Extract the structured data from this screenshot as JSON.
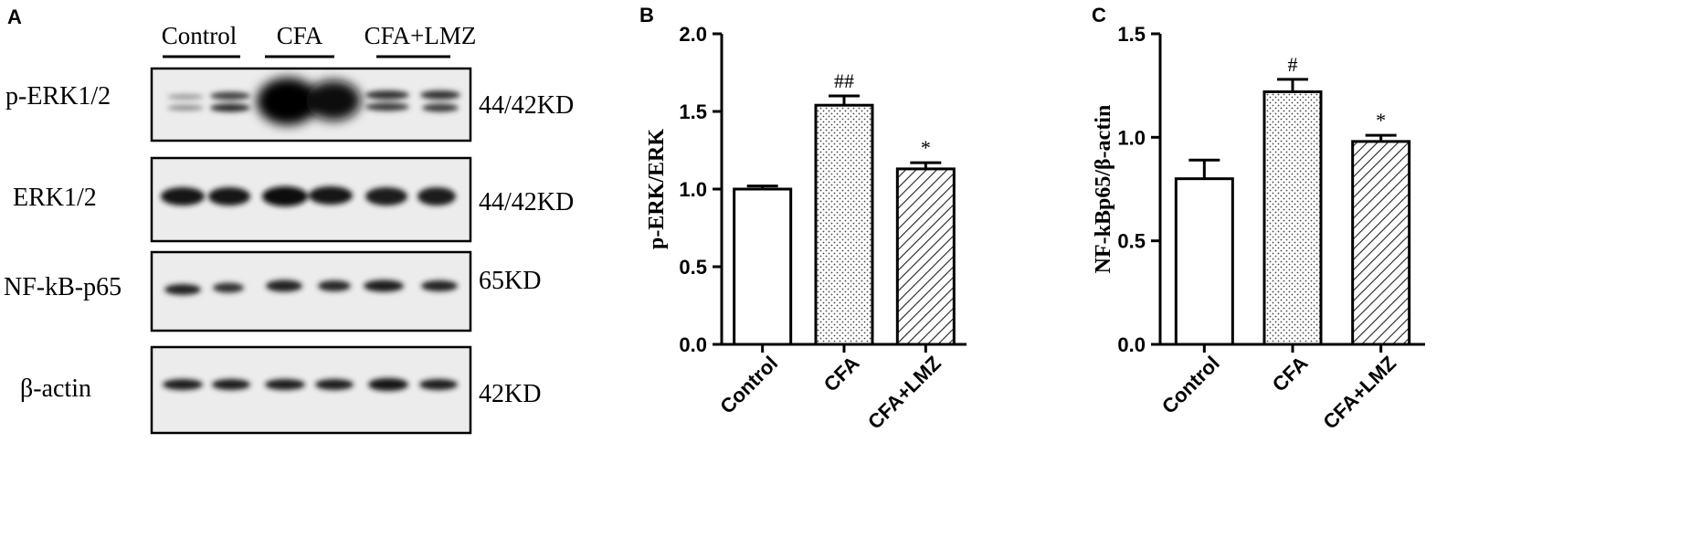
{
  "panel_a": {
    "letter": "A",
    "groups": [
      "Control",
      "CFA",
      "CFA+LMZ"
    ],
    "blots": [
      {
        "protein": "p-ERK1/2",
        "size": "44/42KD"
      },
      {
        "protein": "ERK1/2",
        "size": "44/42KD"
      },
      {
        "protein": "NF-kB-p65",
        "size": "65KD"
      },
      {
        "protein": "β-actin",
        "size": "42KD"
      }
    ]
  },
  "panel_b": {
    "letter": "B"
  },
  "panel_c": {
    "letter": "C"
  },
  "chart_data": [
    {
      "type": "bar",
      "ylabel": "p-ERK/ERK",
      "categories": [
        "Control",
        "CFA",
        "CFA+LMZ"
      ],
      "values": [
        1.0,
        1.54,
        1.13
      ],
      "errors": [
        0.02,
        0.06,
        0.04
      ],
      "annotations": [
        "",
        "##",
        "*"
      ],
      "fills": [
        "white",
        "dots",
        "hatch"
      ],
      "ylim": [
        0,
        2.0
      ],
      "yticks": [
        "0.0",
        "0.5",
        "1.0",
        "1.5",
        "2.0"
      ]
    },
    {
      "type": "bar",
      "ylabel": "NF-kBp65/β-actin",
      "categories": [
        "Control",
        "CFA",
        "CFA+LMZ"
      ],
      "values": [
        0.8,
        1.22,
        0.98
      ],
      "errors": [
        0.09,
        0.06,
        0.03
      ],
      "annotations": [
        "",
        "#",
        "*"
      ],
      "fills": [
        "white",
        "dots",
        "hatch"
      ],
      "ylim": [
        0,
        1.5
      ],
      "yticks": [
        "0.0",
        "0.5",
        "1.0",
        "1.5"
      ]
    }
  ]
}
